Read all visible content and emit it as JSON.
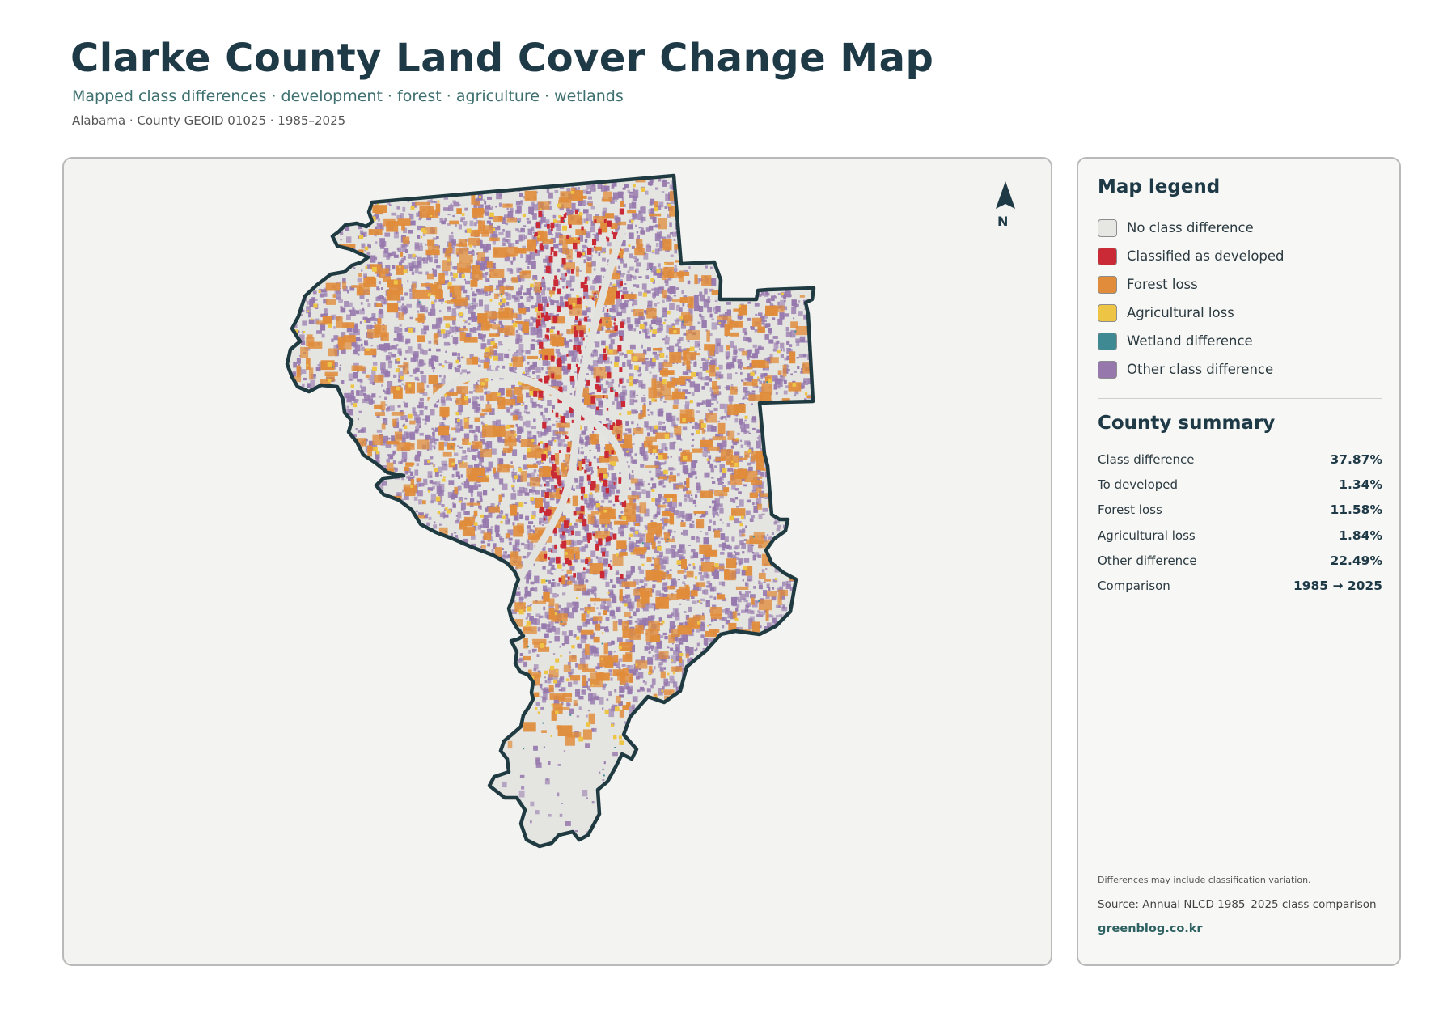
{
  "header": {
    "title": "Clarke County Land Cover Change Map",
    "subtitle": "Mapped class differences · development · forest · agriculture · wetlands",
    "meta": "Alabama · County GEOID 01025 · 1985–2025"
  },
  "map": {
    "north_label": "N",
    "north_icon": "north-arrow-icon",
    "background_color": "#f3f3f1",
    "county_fill": "#e4e4e1",
    "outline_color": "#1f3a40"
  },
  "legend": {
    "title": "Map legend",
    "items": [
      {
        "label": "No class difference",
        "color": "#e6e6e3"
      },
      {
        "label": "Classified as developed",
        "color": "#c92a35"
      },
      {
        "label": "Forest loss",
        "color": "#e08c3a"
      },
      {
        "label": "Agricultural loss",
        "color": "#eec445"
      },
      {
        "label": "Wetland difference",
        "color": "#3f8a92"
      },
      {
        "label": "Other class difference",
        "color": "#9678ad"
      }
    ]
  },
  "summary": {
    "title": "County summary",
    "rows": [
      {
        "label": "Class difference",
        "value": "37.87%"
      },
      {
        "label": "To developed",
        "value": "1.34%"
      },
      {
        "label": "Forest loss",
        "value": "11.58%"
      },
      {
        "label": "Agricultural loss",
        "value": "1.84%"
      },
      {
        "label": "Other difference",
        "value": "22.49%"
      },
      {
        "label": "Comparison",
        "value": "1985 → 2025"
      }
    ]
  },
  "footer": {
    "note": "Differences may include classification variation.",
    "source": "Source: Annual NLCD 1985–2025 class comparison",
    "site": "greenblog.co.kr"
  }
}
